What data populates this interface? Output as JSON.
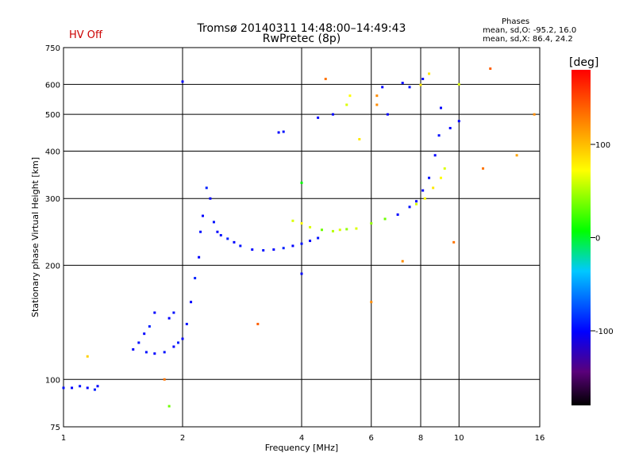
{
  "header": {
    "title_line1": "Tromsø 20140311 14:48:00–14:49:43",
    "title_line2": "RwPretec (8p)",
    "status": "HV Off",
    "status_color": "#cc0000",
    "phases_heading": "Phases",
    "phases_o": "mean, sd,O: -95.2, 16.0",
    "phases_x": "mean, sd,X:  86.4, 24.2"
  },
  "colorbar": {
    "unit_label": "[deg]",
    "ticks": [
      {
        "value": 100,
        "label": "100"
      },
      {
        "value": 0,
        "label": "0"
      },
      {
        "value": -100,
        "label": "-100"
      }
    ],
    "range": [
      -180,
      180
    ],
    "colormap": "rainbow (black-violet-blue-cyan-green-yellow-orange-red)"
  },
  "chart_data": {
    "type": "scatter",
    "title": "Tromsø 20140311 14:48:00–14:49:43",
    "subtitle": "RwPretec (8p)",
    "xlabel": "Frequency [MHz]",
    "ylabel": "Stationary phase Virtual Height [km]",
    "xscale": "log",
    "yscale": "log",
    "xlim": [
      1,
      16
    ],
    "ylim": [
      75,
      750
    ],
    "x_ticks": [
      1,
      2,
      4,
      6,
      8,
      10,
      16
    ],
    "y_ticks": [
      75,
      100,
      200,
      300,
      400,
      500,
      600,
      750
    ],
    "grid": true,
    "color_encoding": "phase [deg]",
    "series": [
      {
        "points": [
          [
            1.0,
            95,
            -95
          ],
          [
            1.05,
            95,
            -100
          ],
          [
            1.1,
            96,
            -95
          ],
          [
            1.15,
            95,
            -100
          ],
          [
            1.2,
            94,
            -90
          ],
          [
            1.22,
            96,
            -100
          ]
        ]
      },
      {
        "points": [
          [
            1.5,
            120,
            -100
          ],
          [
            1.55,
            125,
            -95
          ],
          [
            1.6,
            132,
            -100
          ],
          [
            1.65,
            138,
            -90
          ],
          [
            1.7,
            150,
            -100
          ],
          [
            1.62,
            118,
            -95
          ],
          [
            1.7,
            117,
            -100
          ],
          [
            1.8,
            118,
            -95
          ],
          [
            1.9,
            122,
            -100
          ],
          [
            1.95,
            125,
            -90
          ],
          [
            1.85,
            145,
            -100
          ],
          [
            1.9,
            150,
            -95
          ]
        ]
      },
      {
        "points": [
          [
            2.0,
            128,
            -100
          ],
          [
            2.05,
            140,
            -95
          ],
          [
            2.1,
            160,
            -100
          ],
          [
            2.15,
            185,
            -90
          ],
          [
            2.2,
            210,
            -100
          ],
          [
            2.22,
            245,
            -95
          ],
          [
            2.25,
            270,
            -100
          ],
          [
            2.3,
            320,
            -90
          ],
          [
            2.35,
            300,
            -100
          ],
          [
            2.4,
            260,
            -95
          ],
          [
            2.45,
            245,
            -100
          ],
          [
            2.5,
            240,
            -95
          ],
          [
            2.6,
            235,
            -90
          ],
          [
            2.7,
            230,
            -100
          ],
          [
            2.8,
            225,
            -95
          ],
          [
            3.0,
            220,
            -100
          ],
          [
            3.2,
            219,
            -95
          ],
          [
            3.4,
            220,
            -100
          ],
          [
            3.6,
            222,
            -90
          ],
          [
            3.8,
            225,
            -100
          ],
          [
            4.0,
            228,
            -95
          ],
          [
            4.2,
            232,
            -100
          ],
          [
            4.4,
            236,
            -95
          ]
        ]
      },
      {
        "points": [
          [
            3.8,
            262,
            60
          ],
          [
            4.0,
            258,
            70
          ],
          [
            4.2,
            252,
            60
          ],
          [
            4.5,
            248,
            30
          ],
          [
            4.8,
            246,
            50
          ],
          [
            5.0,
            248,
            60
          ],
          [
            5.2,
            249,
            40
          ]
        ]
      },
      {
        "points": [
          [
            5.5,
            250,
            60
          ],
          [
            6.0,
            258,
            40
          ],
          [
            6.5,
            265,
            30
          ],
          [
            7.0,
            272,
            -100
          ],
          [
            7.5,
            285,
            -95
          ],
          [
            7.8,
            295,
            -100
          ],
          [
            8.1,
            315,
            -100
          ],
          [
            8.4,
            340,
            -95
          ],
          [
            8.7,
            390,
            -100
          ],
          [
            8.9,
            440,
            -95
          ],
          [
            9.0,
            520,
            -100
          ]
        ]
      },
      {
        "points": [
          [
            7.8,
            290,
            60
          ],
          [
            8.2,
            300,
            70
          ],
          [
            8.6,
            320,
            80
          ],
          [
            9.0,
            340,
            70
          ],
          [
            9.2,
            360,
            60
          ]
        ]
      },
      {
        "points": [
          [
            7.2,
            605,
            -100
          ],
          [
            7.5,
            590,
            -95
          ],
          [
            8.1,
            620,
            -100
          ],
          [
            8.4,
            640,
            80
          ],
          [
            8.0,
            598,
            80
          ]
        ]
      },
      {
        "points": [
          [
            1.15,
            115,
            90
          ],
          [
            1.8,
            100,
            130
          ],
          [
            2.0,
            610,
            -100
          ],
          [
            3.5,
            448,
            -100
          ],
          [
            3.6,
            450,
            -95
          ],
          [
            4.0,
            190,
            -100
          ],
          [
            4.0,
            330,
            0
          ],
          [
            4.4,
            490,
            -100
          ],
          [
            4.8,
            500,
            -100
          ],
          [
            5.2,
            530,
            60
          ],
          [
            5.3,
            560,
            70
          ],
          [
            5.6,
            430,
            80
          ],
          [
            6.2,
            530,
            120
          ],
          [
            6.2,
            560,
            120
          ],
          [
            6.4,
            590,
            -100
          ],
          [
            6.6,
            500,
            -100
          ],
          [
            7.2,
            205,
            120
          ],
          [
            9.5,
            460,
            -100
          ],
          [
            9.7,
            230,
            130
          ],
          [
            10.0,
            600,
            60
          ],
          [
            10.0,
            480,
            -100
          ],
          [
            11.5,
            360,
            130
          ],
          [
            12.0,
            660,
            140
          ],
          [
            14.0,
            390,
            110
          ],
          [
            15.5,
            500,
            120
          ],
          [
            4.6,
            620,
            130
          ],
          [
            3.1,
            140,
            140
          ],
          [
            6.0,
            160,
            120
          ],
          [
            1.85,
            85,
            30
          ]
        ]
      }
    ]
  }
}
